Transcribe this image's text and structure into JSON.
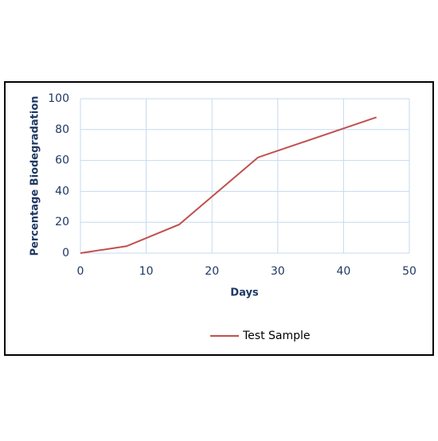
{
  "chart_data": {
    "type": "line",
    "x_label": "Days",
    "y_label": "Percentage Biodegradation",
    "series": [
      {
        "name": "Test Sample",
        "color": "#c0504d",
        "x": [
          0,
          7,
          15,
          27,
          45
        ],
        "values": [
          0,
          4.5,
          18.5,
          62,
          88
        ]
      }
    ],
    "xlim": [
      0,
      50
    ],
    "xticks": [
      0,
      10,
      20,
      30,
      40,
      50
    ],
    "ylim": [
      0,
      100
    ],
    "yticks": [
      0,
      20,
      40,
      60,
      80,
      100
    ],
    "grid": true,
    "legend": "bottom"
  }
}
